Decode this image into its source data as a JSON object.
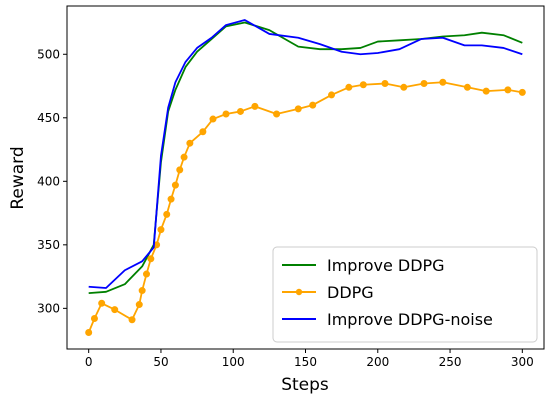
{
  "chart_data": {
    "type": "line",
    "title": "",
    "xlabel": "Steps",
    "ylabel": "Reward",
    "xlim": [
      -15,
      315
    ],
    "ylim": [
      268,
      538
    ],
    "x_ticks": [
      0,
      50,
      100,
      150,
      200,
      250,
      300
    ],
    "y_ticks": [
      300,
      350,
      400,
      450,
      500
    ],
    "grid": false,
    "legend_position": "lower-right",
    "series": [
      {
        "name": "Improve DDPG",
        "color": "#008000",
        "marker": "none",
        "x": [
          0,
          12,
          25,
          37,
          45,
          50,
          55,
          60,
          67,
          75,
          85,
          95,
          108,
          125,
          145,
          160,
          175,
          188,
          200,
          215,
          230,
          245,
          260,
          272,
          287,
          300
        ],
        "y": [
          312,
          313,
          319,
          333,
          350,
          415,
          455,
          472,
          490,
          502,
          512,
          522,
          525,
          519,
          506,
          504,
          504,
          505,
          510,
          511,
          512,
          514,
          515,
          517,
          515,
          509
        ]
      },
      {
        "name": "DDPG",
        "color": "#FFA500",
        "marker": "circle",
        "x": [
          0,
          4,
          9,
          18,
          30,
          35,
          37,
          40,
          43,
          47,
          50,
          54,
          57,
          60,
          63,
          66,
          70,
          79,
          86,
          95,
          105,
          115,
          130,
          145,
          155,
          168,
          180,
          190,
          205,
          218,
          232,
          245,
          262,
          275,
          290,
          300
        ],
        "y": [
          281,
          292,
          304,
          299,
          291,
          303,
          314,
          327,
          339,
          350,
          362,
          374,
          386,
          397,
          409,
          419,
          430,
          439,
          449,
          453,
          455,
          459,
          453,
          457,
          460,
          468,
          474,
          476,
          477,
          474,
          477,
          478,
          474,
          471,
          472,
          470
        ]
      },
      {
        "name": "Improve DDPG-noise",
        "color": "#0000FF",
        "marker": "none",
        "x": [
          0,
          12,
          25,
          37,
          45,
          50,
          55,
          60,
          67,
          75,
          85,
          95,
          108,
          125,
          145,
          160,
          175,
          188,
          200,
          215,
          230,
          245,
          260,
          272,
          287,
          300
        ],
        "y": [
          317,
          316,
          330,
          337,
          348,
          420,
          458,
          478,
          494,
          505,
          513,
          523,
          527,
          516,
          513,
          508,
          502,
          500,
          501,
          504,
          512,
          513,
          507,
          507,
          505,
          500
        ]
      }
    ]
  }
}
